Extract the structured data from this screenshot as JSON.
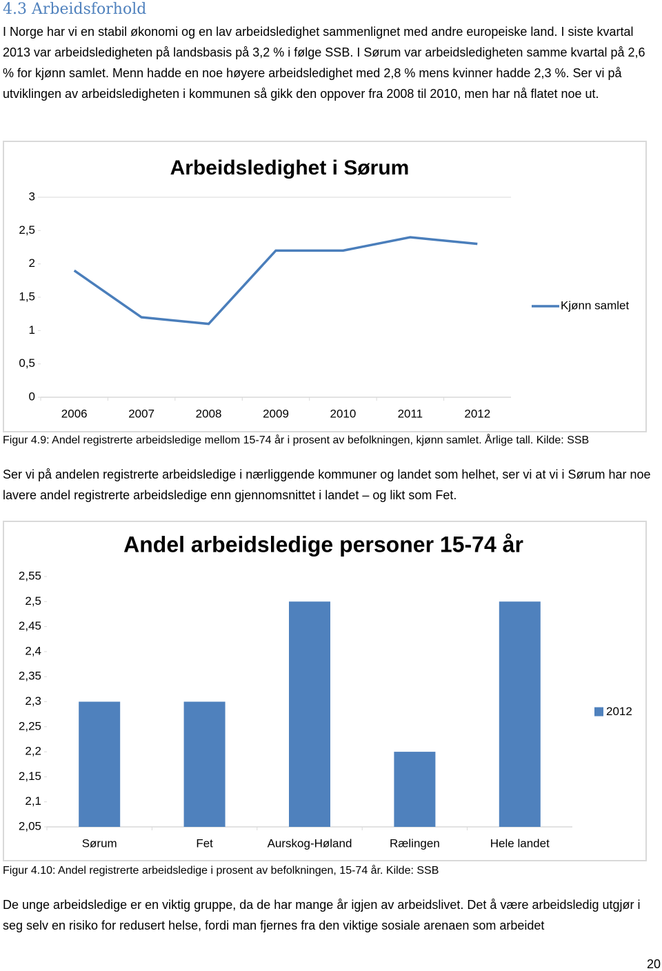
{
  "heading": "4.3 Arbeidsforhold",
  "paragraphs": [
    "I Norge har vi en stabil økonomi og en lav arbeidsledighet sammenlignet med andre europeiske land. I siste kvartal 2013 var arbeidsledigheten på landsbasis på 3,2 % i følge SSB. I Sørum var arbeidsledigheten samme kvartal på 2,6 % for kjønn samlet. Menn hadde en noe høyere arbeidsledighet med 2,8 % mens kvinner hadde 2,3 %. Ser vi på utviklingen av arbeidsledigheten i kommunen så gikk den oppover fra 2008 til 2010, men har nå flatet noe ut.",
    "Ser vi på andelen registrerte arbeidsledige i nærliggende kommuner og landet som helhet, ser vi at vi i Sørum har noe lavere andel registrerte arbeidsledige enn gjennomsnittet i landet – og likt som Fet.",
    "De unge arbeidsledige er en viktig gruppe, da de har mange år igjen av arbeidslivet. Det å være arbeidsledig utgjør i seg selv en risiko for redusert helse, fordi man fjernes fra den viktige sosiale arenaen som arbeidet"
  ],
  "captions": [
    "Figur 4.9: Andel registrerte arbeidsledige mellom 15-74 år i prosent av befolkningen, kjønn samlet. Årlige tall. Kilde: SSB",
    "Figur 4.10: Andel registrerte arbeidsledige i prosent av befolkningen, 15-74 år. Kilde: SSB"
  ],
  "page_number": "20",
  "chart_data": [
    {
      "type": "line",
      "title": "Arbeidsledighet i Sørum",
      "categories": [
        "2006",
        "2007",
        "2008",
        "2009",
        "2010",
        "2011",
        "2012"
      ],
      "series": [
        {
          "name": "Kjønn samlet",
          "color": "#4a7ebb",
          "values": [
            1.9,
            1.2,
            1.1,
            2.2,
            2.2,
            2.4,
            2.3
          ]
        }
      ],
      "ylim": [
        0,
        3
      ],
      "yticks": [
        0,
        {
          "value": 0.5,
          "label": "0,5"
        },
        1,
        {
          "value": 1.5,
          "label": "1,5"
        },
        2,
        {
          "value": 2.5,
          "label": "2,5"
        },
        3
      ],
      "legend": "right"
    },
    {
      "type": "bar",
      "title": "Andel arbeidsledige personer 15-74 år",
      "categories": [
        "Sørum",
        "Fet",
        "Aurskog-Høland",
        "Rælingen",
        "Hele landet"
      ],
      "series": [
        {
          "name": "2012",
          "color": "#4f81bd",
          "values": [
            2.3,
            2.3,
            2.5,
            2.2,
            2.5
          ]
        }
      ],
      "ylim": [
        2.05,
        2.55
      ],
      "yticks": [
        {
          "value": 2.05,
          "label": "2,05"
        },
        {
          "value": 2.1,
          "label": "2,1"
        },
        {
          "value": 2.15,
          "label": "2,15"
        },
        {
          "value": 2.2,
          "label": "2,2"
        },
        {
          "value": 2.25,
          "label": "2,25"
        },
        {
          "value": 2.3,
          "label": "2,3"
        },
        {
          "value": 2.35,
          "label": "2,35"
        },
        {
          "value": 2.4,
          "label": "2,4"
        },
        {
          "value": 2.45,
          "label": "2,45"
        },
        {
          "value": 2.5,
          "label": "2,5"
        },
        {
          "value": 2.55,
          "label": "2,55"
        }
      ],
      "legend": "right"
    }
  ]
}
